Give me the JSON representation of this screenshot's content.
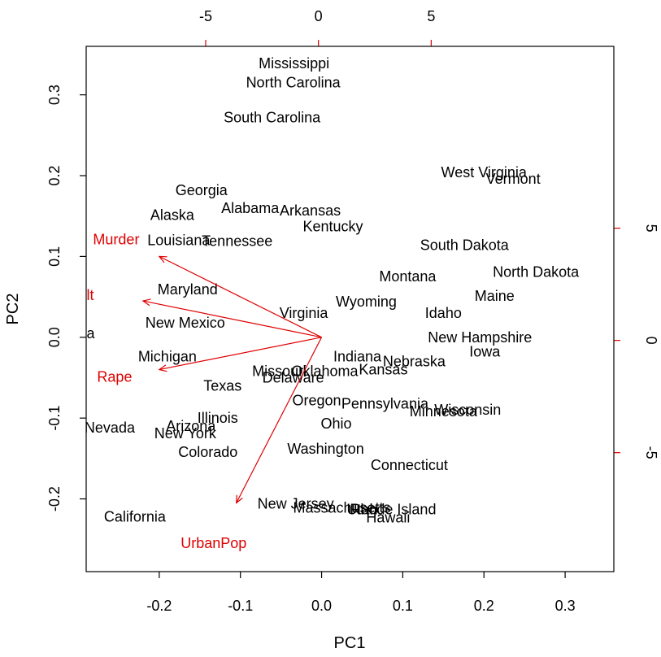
{
  "chart_data": {
    "type": "scatter",
    "title": "",
    "xlabel": "PC1",
    "ylabel": "PC2",
    "xlim": [
      -0.29,
      0.36
    ],
    "ylim": [
      -0.29,
      0.36
    ],
    "x_ticks": [
      -0.2,
      -0.1,
      0.0,
      0.1,
      0.2,
      0.3
    ],
    "x_tick_labels": [
      "-0.2",
      "-0.1",
      "0.0",
      "0.1",
      "0.2",
      "0.3"
    ],
    "y_ticks": [
      -0.2,
      -0.1,
      0.0,
      0.1,
      0.2,
      0.3
    ],
    "y_tick_labels": [
      "-0.2",
      "-0.1",
      "0.0",
      "0.1",
      "0.2",
      "0.3"
    ],
    "secondary_xlim": [
      -10.3,
      13.1
    ],
    "secondary_ylim": [
      -10.3,
      13.1
    ],
    "top_ticks": [
      -5,
      0,
      5
    ],
    "top_tick_labels": [
      "-5",
      "0",
      "5"
    ],
    "right_ticks": [
      -5,
      0,
      5
    ],
    "right_tick_labels": [
      "-5",
      "0",
      "5"
    ],
    "grid": false,
    "legend": "none",
    "point_color": "#000000",
    "arrow_color": "#e00000",
    "points": [
      {
        "label": "Mississippi",
        "x": -0.034,
        "y": 0.339
      },
      {
        "label": "North Carolina",
        "x": -0.035,
        "y": 0.315
      },
      {
        "label": "South Carolina",
        "x": -0.061,
        "y": 0.272
      },
      {
        "label": "Georgia",
        "x": -0.148,
        "y": 0.182
      },
      {
        "label": "Alaska",
        "x": -0.184,
        "y": 0.151
      },
      {
        "label": "Alabama",
        "x": -0.088,
        "y": 0.16
      },
      {
        "label": "Arkansas",
        "x": -0.014,
        "y": 0.157
      },
      {
        "label": "Kentucky",
        "x": 0.014,
        "y": 0.137
      },
      {
        "label": "Louisiana",
        "x": -0.176,
        "y": 0.12
      },
      {
        "label": "Tennessee",
        "x": -0.104,
        "y": 0.119
      },
      {
        "label": "West Virginia",
        "x": 0.2,
        "y": 0.204
      },
      {
        "label": "Vermont",
        "x": 0.236,
        "y": 0.196
      },
      {
        "label": "South Dakota",
        "x": 0.176,
        "y": 0.114
      },
      {
        "label": "North Dakota",
        "x": 0.264,
        "y": 0.081
      },
      {
        "label": "Montana",
        "x": 0.106,
        "y": 0.075
      },
      {
        "label": "Maine",
        "x": 0.213,
        "y": 0.051
      },
      {
        "label": "Maryland",
        "x": -0.165,
        "y": 0.059
      },
      {
        "label": "Wyoming",
        "x": 0.055,
        "y": 0.044
      },
      {
        "label": "Idaho",
        "x": 0.15,
        "y": 0.03
      },
      {
        "label": "Virginia",
        "x": -0.022,
        "y": 0.03
      },
      {
        "label": "New Mexico",
        "x": -0.168,
        "y": 0.018
      },
      {
        "label": "Florida",
        "x": -0.307,
        "y": 0.005
      },
      {
        "label": "New Hampshire",
        "x": 0.195,
        "y": 0.0
      },
      {
        "label": "Iowa",
        "x": 0.201,
        "y": -0.018
      },
      {
        "label": "Michigan",
        "x": -0.19,
        "y": -0.024
      },
      {
        "label": "Indiana",
        "x": 0.044,
        "y": -0.024
      },
      {
        "label": "Nebraska",
        "x": 0.114,
        "y": -0.03
      },
      {
        "label": "Missouri",
        "x": -0.052,
        "y": -0.042
      },
      {
        "label": "Oklahoma",
        "x": 0.004,
        "y": -0.042
      },
      {
        "label": "Kansas",
        "x": 0.076,
        "y": -0.04
      },
      {
        "label": "Delaware",
        "x": -0.035,
        "y": -0.05
      },
      {
        "label": "Texas",
        "x": -0.122,
        "y": -0.06
      },
      {
        "label": "Oregon",
        "x": -0.006,
        "y": -0.078
      },
      {
        "label": "Pennsylvania",
        "x": 0.078,
        "y": -0.082
      },
      {
        "label": "Minnesota",
        "x": 0.15,
        "y": -0.092
      },
      {
        "label": "Wisconsin",
        "x": 0.18,
        "y": -0.09
      },
      {
        "label": "Illinois",
        "x": -0.128,
        "y": -0.1
      },
      {
        "label": "Nevada",
        "x": -0.261,
        "y": -0.112
      },
      {
        "label": "Arizona",
        "x": -0.161,
        "y": -0.11
      },
      {
        "label": "Ohio",
        "x": 0.018,
        "y": -0.107
      },
      {
        "label": "New York",
        "x": -0.168,
        "y": -0.119
      },
      {
        "label": "Colorado",
        "x": -0.14,
        "y": -0.142
      },
      {
        "label": "Washington",
        "x": 0.005,
        "y": -0.138
      },
      {
        "label": "Connecticut",
        "x": 0.108,
        "y": -0.158
      },
      {
        "label": "New Jersey",
        "x": -0.032,
        "y": -0.206
      },
      {
        "label": "Massachusetts",
        "x": 0.025,
        "y": -0.211
      },
      {
        "label": "Utah",
        "x": 0.05,
        "y": -0.213
      },
      {
        "label": "Rhode Island",
        "x": 0.088,
        "y": -0.213
      },
      {
        "label": "Hawaii",
        "x": 0.082,
        "y": -0.223
      },
      {
        "label": "California",
        "x": -0.23,
        "y": -0.222
      }
    ],
    "loadings": [
      {
        "label": "Murder",
        "x": -0.2,
        "y": 0.1
      },
      {
        "label": "Assault",
        "x": -0.22,
        "y": 0.045
      },
      {
        "label": "Rape",
        "x": -0.2,
        "y": -0.04
      },
      {
        "label": "UrbanPop",
        "x": -0.105,
        "y": -0.205
      }
    ],
    "loading_label_pos": [
      {
        "x": -0.253,
        "y": 0.121
      },
      {
        "x": -0.31,
        "y": 0.052
      },
      {
        "x": -0.255,
        "y": -0.049
      },
      {
        "x": -0.133,
        "y": -0.255
      }
    ]
  }
}
